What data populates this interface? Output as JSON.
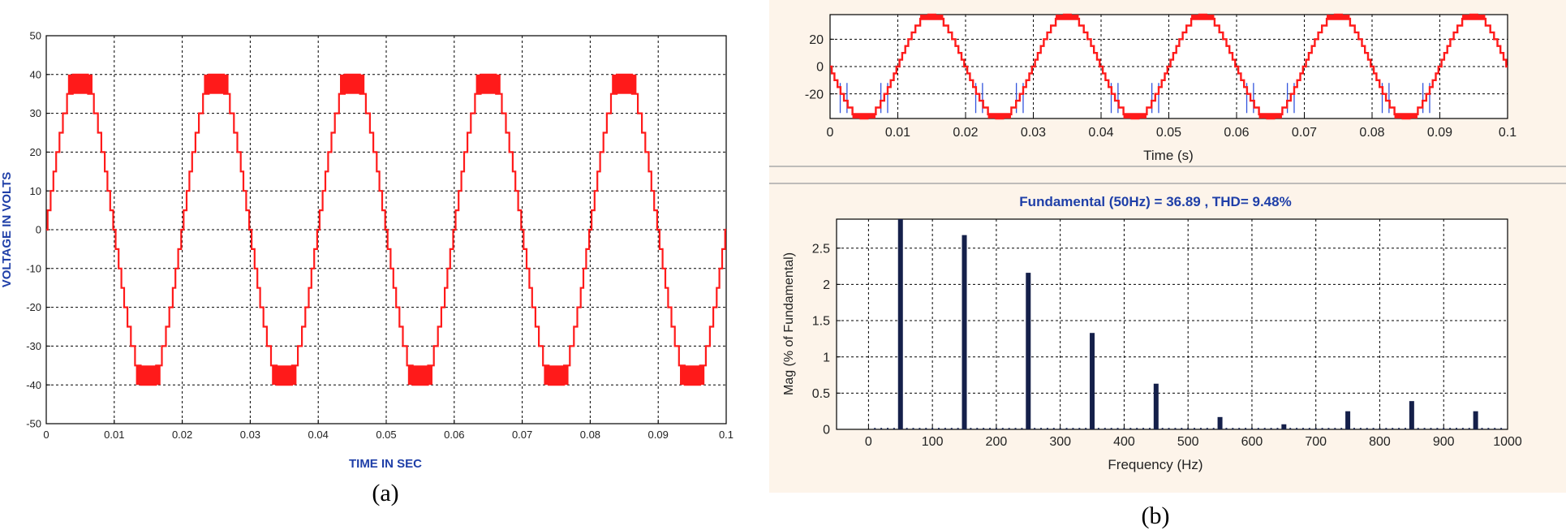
{
  "colors": {
    "waveform": "#ff1a1a",
    "spike": "#3355dd",
    "axis_title_blue": "#1f3fa8",
    "bar": "#15204a",
    "panel_bg": "#fdf4ea",
    "grid": "#000000"
  },
  "captions": {
    "a": "(a)",
    "b": "(b)"
  },
  "chart_data": [
    {
      "id": "a",
      "type": "line",
      "title": "",
      "xlabel": "TIME IN SEC",
      "ylabel": "VOLTAGE IN VOLTS",
      "xlim": [
        0,
        0.1
      ],
      "ylim": [
        -50,
        50
      ],
      "xticks": [
        "0",
        "0.01",
        "0.02",
        "0.03",
        "0.04",
        "0.05",
        "0.06",
        "0.07",
        "0.08",
        "0.09",
        "0.1"
      ],
      "yticks": [
        "50",
        "40",
        "30",
        "20",
        "10",
        "0",
        "-10",
        "-20",
        "-30",
        "-40",
        "-50"
      ],
      "grid": true,
      "series": [
        {
          "fundamental_hz": 50,
          "step_volts": 5,
          "peak_volts": 40,
          "duration_s": 0.1
        }
      ]
    },
    {
      "id": "b-top",
      "type": "line",
      "title": "",
      "xlabel": "Time (s)",
      "ylabel": "",
      "xlim": [
        0,
        0.1
      ],
      "ylim": [
        -38,
        38
      ],
      "xticks": [
        "0",
        "0.01",
        "0.02",
        "0.03",
        "0.04",
        "0.05",
        "0.06",
        "0.07",
        "0.08",
        "0.09",
        "0.1"
      ],
      "yticks": [
        "20",
        "0",
        "-20"
      ],
      "grid": true,
      "series": [
        {
          "fundamental_hz": 50,
          "step_volts": 5,
          "peak_volts": 38,
          "duration_s": 0.1,
          "phase": "inverted"
        }
      ]
    },
    {
      "id": "b-bottom",
      "type": "bar",
      "title": "Fundamental (50Hz) = 36.89 , THD= 9.48%",
      "xlabel": "Frequency (Hz)",
      "ylabel": "Mag (% of Fundamental)",
      "xlim": [
        -50,
        1000
      ],
      "ylim": [
        0,
        2.9
      ],
      "xticks": [
        "0",
        "100",
        "200",
        "300",
        "400",
        "500",
        "600",
        "700",
        "800",
        "900",
        "1000"
      ],
      "yticks": [
        "2.5",
        "2",
        "1.5",
        "1",
        "0.5",
        "0"
      ],
      "grid": true,
      "x": [
        50,
        150,
        250,
        350,
        450,
        550,
        650,
        750,
        850,
        950
      ],
      "values": [
        2.9,
        2.68,
        2.16,
        1.33,
        0.63,
        0.17,
        0.07,
        0.25,
        0.39,
        0.25
      ]
    }
  ]
}
